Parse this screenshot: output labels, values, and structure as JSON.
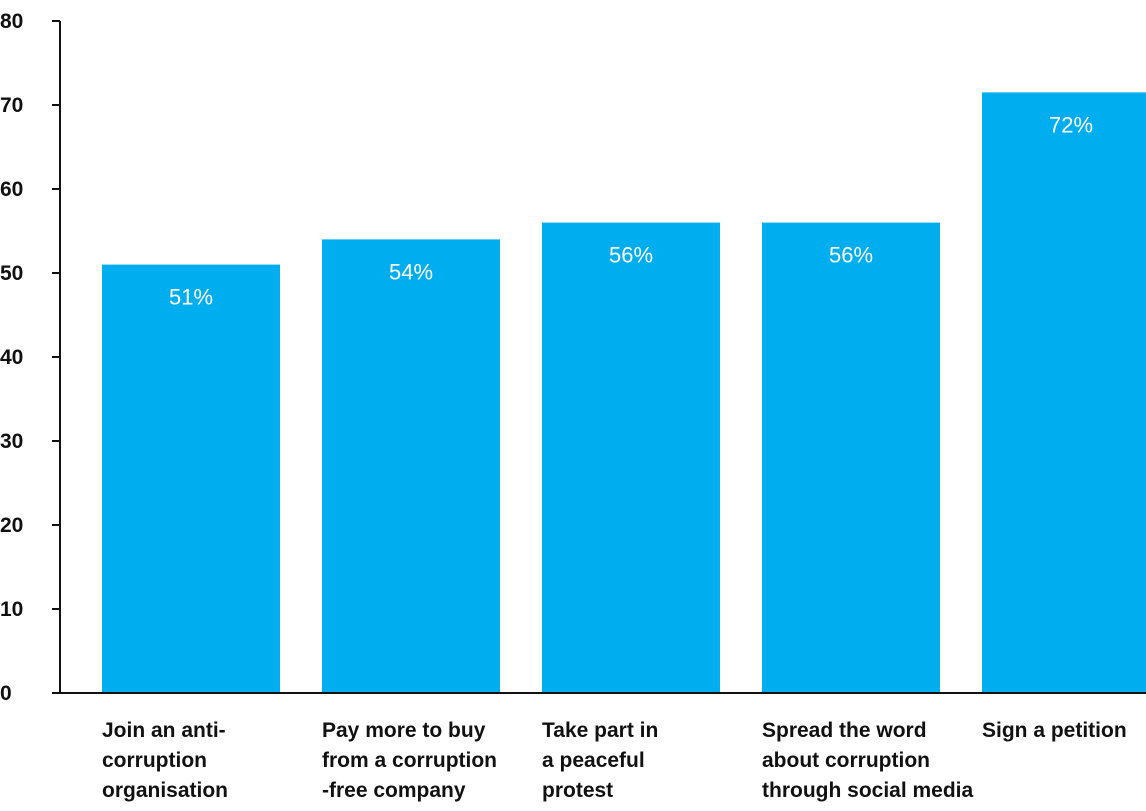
{
  "chart_data": {
    "type": "bar",
    "title": "",
    "xlabel": "",
    "ylabel": "",
    "ylim": [
      0,
      80
    ],
    "yticks": [
      0,
      10,
      20,
      30,
      40,
      50,
      60,
      70,
      80
    ],
    "grid": false,
    "legend": "none",
    "bar_color": "#00AEEF",
    "categories": [
      [
        "Join an anti-",
        "corruption",
        "organisation"
      ],
      [
        "Pay more to buy",
        "from a corruption",
        "-free company"
      ],
      [
        "Take part in",
        "a peaceful",
        "protest"
      ],
      [
        "Spread the word",
        "about corruption",
        "through social media"
      ],
      [
        "Sign a petition"
      ]
    ],
    "values": [
      51,
      54,
      56,
      56,
      71.5
    ],
    "data_labels": [
      "51%",
      "54%",
      "56%",
      "56%",
      "72%"
    ]
  }
}
